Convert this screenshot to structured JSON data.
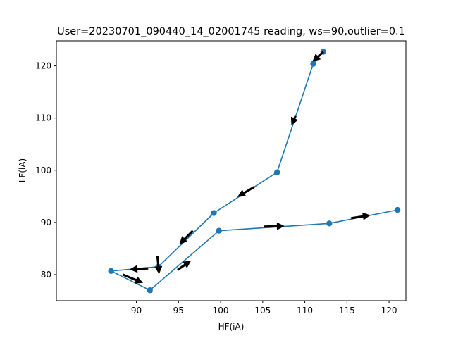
{
  "chart_data": {
    "type": "line",
    "title": "User=20230701_090440_14_02001745 reading, ws=90,outlier=0.1",
    "xlabel": "HF(iA)",
    "ylabel": "LF(iA)",
    "xlim": [
      80.5,
      122.0
    ],
    "ylim": [
      75.0,
      124.8
    ],
    "xticks": [
      90,
      95,
      100,
      105,
      110,
      115,
      120
    ],
    "yticks": [
      80,
      90,
      100,
      110,
      120
    ],
    "series": [
      {
        "color": "#1f77b4",
        "marker": "circle",
        "points": [
          {
            "x": 121.0,
            "y": 92.4
          },
          {
            "x": 112.9,
            "y": 89.8
          },
          {
            "x": 99.8,
            "y": 88.4
          },
          {
            "x": 91.6,
            "y": 77.0
          },
          {
            "x": 87.0,
            "y": 80.7
          },
          {
            "x": 92.6,
            "y": 81.5
          },
          {
            "x": 99.2,
            "y": 91.8
          },
          {
            "x": 106.7,
            "y": 99.6
          },
          {
            "x": 111.0,
            "y": 120.4
          },
          {
            "x": 112.2,
            "y": 122.7
          }
        ]
      }
    ],
    "arrows": [
      {
        "from": [
          112.2,
          122.7
        ],
        "to": [
          110.9,
          120.8
        ]
      },
      {
        "from": [
          108.9,
          110.4
        ],
        "to": [
          108.4,
          108.6
        ]
      },
      {
        "from": [
          104.0,
          96.8
        ],
        "to": [
          102.0,
          94.9
        ]
      },
      {
        "from": [
          96.7,
          88.4
        ],
        "to": [
          95.1,
          85.8
        ]
      },
      {
        "from": [
          92.5,
          83.6
        ],
        "to": [
          92.7,
          80.1
        ]
      },
      {
        "from": [
          91.4,
          81.2
        ],
        "to": [
          89.2,
          81.0
        ]
      },
      {
        "from": [
          88.4,
          80.0
        ],
        "to": [
          90.8,
          78.4
        ]
      },
      {
        "from": [
          94.9,
          80.9
        ],
        "to": [
          96.5,
          82.7
        ]
      },
      {
        "from": [
          105.1,
          89.2
        ],
        "to": [
          107.6,
          89.3
        ]
      },
      {
        "from": [
          115.5,
          90.8
        ],
        "to": [
          117.8,
          91.4
        ]
      }
    ],
    "grid": false
  }
}
